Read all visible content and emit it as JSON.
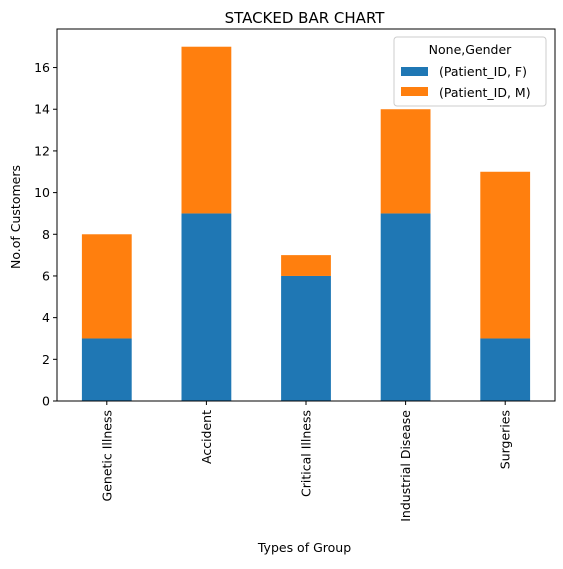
{
  "chart_data": {
    "type": "bar",
    "stacked": true,
    "title": "STACKED BAR CHART",
    "xlabel": "Types of Group",
    "ylabel": "No.of Customers",
    "categories": [
      "Genetic Illness",
      "Accident",
      "Critical Illness",
      "Industrial Disease",
      "Surgeries"
    ],
    "series": [
      {
        "name": "(Patient_ID, F)",
        "values": [
          3,
          9,
          6,
          9,
          3
        ],
        "color": "#1f77b4"
      },
      {
        "name": "(Patient_ID, M)",
        "values": [
          5,
          8,
          1,
          5,
          8
        ],
        "color": "#ff7f0e"
      }
    ],
    "ylim": [
      0,
      17.85
    ],
    "yticks": [
      0,
      2,
      4,
      6,
      8,
      10,
      12,
      14,
      16
    ],
    "legend": {
      "title": "None,Gender",
      "placement": "top-right"
    },
    "grid": false
  }
}
